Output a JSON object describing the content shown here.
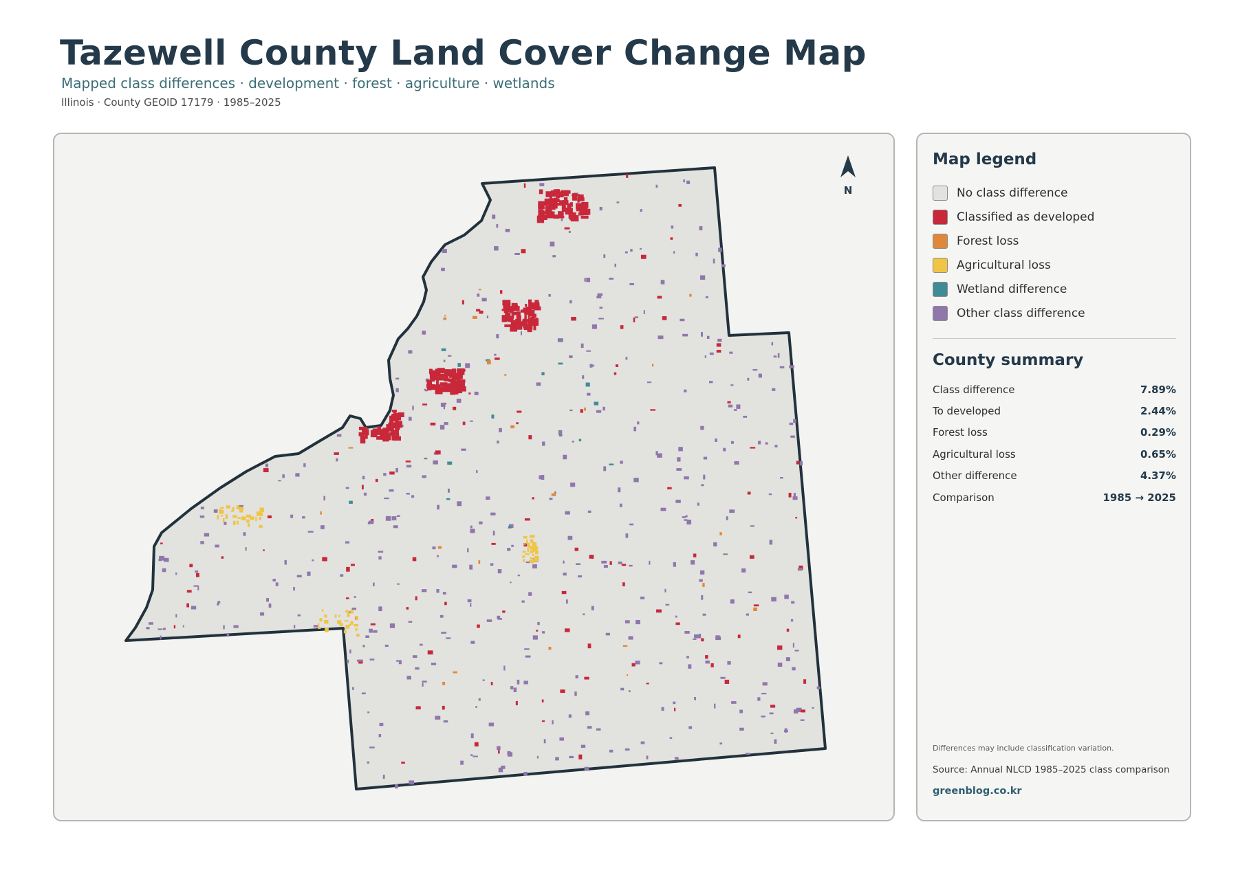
{
  "header": {
    "title": "Tazewell County Land Cover Change Map",
    "subtitle": "Mapped class differences · development · forest · agriculture · wetlands",
    "meta": "Illinois · County GEOID 17179 · 1985–2025"
  },
  "map": {
    "north_label": "N",
    "colors": {
      "panel_bg": "#f3f3f1",
      "county_fill": "#e2e2df",
      "county_outline": "#22323d",
      "developed": "#c8283a",
      "forest_loss": "#e0883a",
      "agricultural_loss": "#f0c545",
      "wetland": "#3f8c96",
      "other": "#9077ab"
    }
  },
  "legend": {
    "heading": "Map legend",
    "items": [
      {
        "label": "No class difference",
        "color": "#e2e2df"
      },
      {
        "label": "Classified as developed",
        "color": "#c8283a"
      },
      {
        "label": "Forest loss",
        "color": "#e0883a"
      },
      {
        "label": "Agricultural loss",
        "color": "#f0c545"
      },
      {
        "label": "Wetland difference",
        "color": "#3f8c96"
      },
      {
        "label": "Other class difference",
        "color": "#9077ab"
      }
    ]
  },
  "summary": {
    "heading": "County summary",
    "rows": [
      {
        "label": "Class difference",
        "value": "7.89%"
      },
      {
        "label": "To developed",
        "value": "2.44%"
      },
      {
        "label": "Forest loss",
        "value": "0.29%"
      },
      {
        "label": "Agricultural loss",
        "value": "0.65%"
      },
      {
        "label": "Other difference",
        "value": "4.37%"
      },
      {
        "label": "Comparison",
        "value": "1985 → 2025"
      }
    ]
  },
  "footer": {
    "note": "Differences may include classification variation.",
    "source": "Source: Annual NLCD 1985–2025 class comparison",
    "credit": "greenblog.co.kr"
  }
}
